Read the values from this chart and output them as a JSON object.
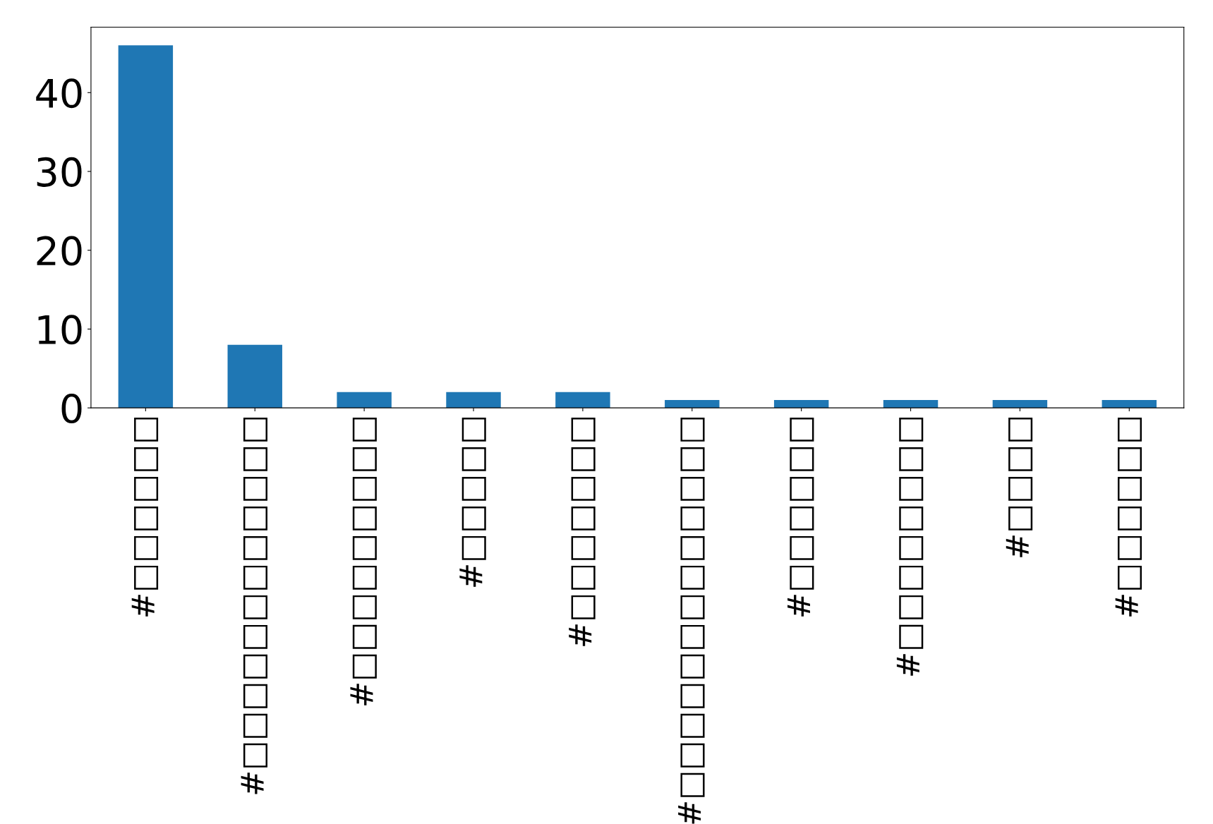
{
  "chart_data": {
    "type": "bar",
    "categories": [
      "#□□□□□□",
      "#□□□□□□□□□□□□",
      "#□□□□□□□□□",
      "#□□□□□",
      "#□□□□□□□",
      "#□□□□□□□□□□□□□",
      "#□□□□□□",
      "#□□□□□□□□",
      "#□□□□",
      "#□□□□□□"
    ],
    "values": [
      46,
      8,
      2,
      2,
      2,
      1,
      1,
      1,
      1,
      1
    ],
    "color": "#1f77b4",
    "ylim": [
      0,
      48.3
    ],
    "yticks": [
      0,
      10,
      20,
      30,
      40
    ],
    "grid": false,
    "legend": false
  }
}
